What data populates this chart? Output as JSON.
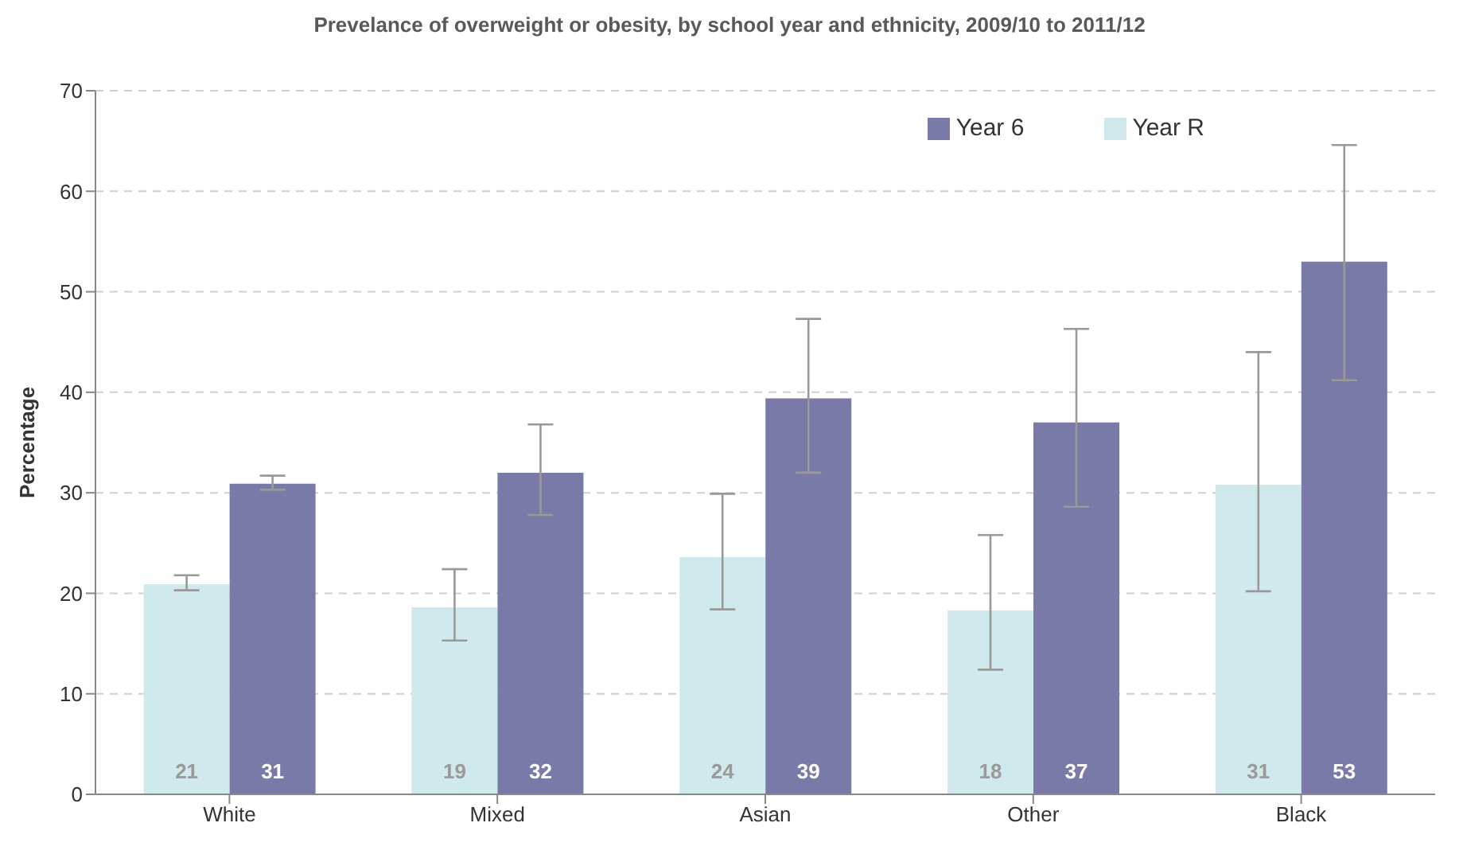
{
  "chart_data": {
    "type": "bar",
    "title": "Prevelance of overweight or obesity, by school year and ethnicity, 2009/10 to 2011/12",
    "ylabel": "Percentage",
    "categories": [
      "White",
      "Mixed",
      "Asian",
      "Other",
      "Black"
    ],
    "series": [
      {
        "name": "Year R",
        "color": "#d0e9ec",
        "values": [
          20.9,
          18.6,
          23.6,
          18.3,
          30.8
        ],
        "errors": [
          [
            20.3,
            21.8
          ],
          [
            15.3,
            22.4
          ],
          [
            18.4,
            29.9
          ],
          [
            12.4,
            25.8
          ],
          [
            20.2,
            44
          ]
        ],
        "value_labels": [
          "21",
          "19",
          "24",
          "18",
          "31"
        ]
      },
      {
        "name": "Year 6",
        "color": "#7a7aa8",
        "values": [
          30.9,
          32,
          39.4,
          37,
          53
        ],
        "errors": [
          [
            30.3,
            31.7
          ],
          [
            27.8,
            36.8
          ],
          [
            32,
            47.3
          ],
          [
            28.6,
            46.3
          ],
          [
            41.2,
            64.6
          ]
        ],
        "value_labels": [
          "31",
          "32",
          "39",
          "37",
          "53"
        ]
      }
    ],
    "ylim": [
      0,
      70
    ],
    "yticks": [
      0,
      10,
      20,
      30,
      40,
      50,
      60,
      70
    ],
    "grid": "y",
    "legend": "top right"
  }
}
